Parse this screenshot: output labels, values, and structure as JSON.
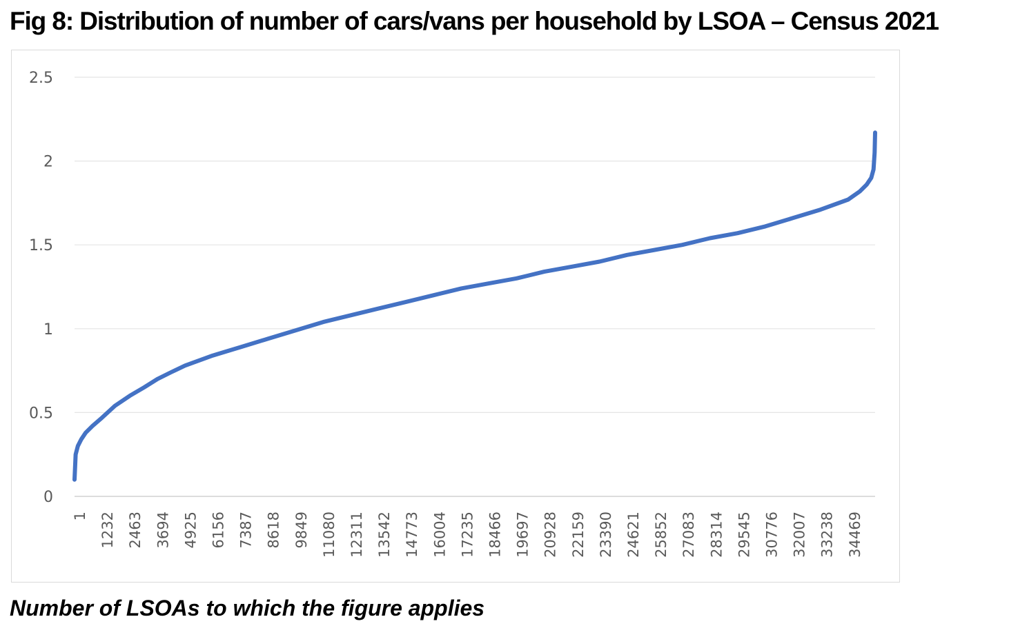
{
  "figure": {
    "title": "Fig 8: Distribution of number of cars/vans per household by LSOA – Census 2021",
    "x_caption": "Number of LSOAs to which the figure applies"
  },
  "chart_data": {
    "type": "line",
    "title": "",
    "xlabel": "",
    "ylabel": "",
    "ylim": [
      0,
      2.5
    ],
    "xlim": [
      1,
      35672
    ],
    "y_ticks": [
      "0",
      "0.5",
      "1",
      "1.5",
      "2",
      "2.5"
    ],
    "x_tick_labels": [
      "1",
      "1232",
      "2463",
      "3694",
      "4925",
      "6156",
      "7387",
      "8618",
      "9849",
      "11080",
      "12311",
      "13542",
      "14773",
      "16004",
      "17235",
      "18466",
      "19697",
      "20928",
      "22159",
      "23390",
      "24621",
      "25852",
      "27083",
      "28314",
      "29545",
      "30776",
      "32007",
      "33238",
      "34469"
    ],
    "grid": true,
    "legend": "none",
    "series_color": "#4472c4",
    "series": [
      {
        "x": [
          1,
          50,
          150,
          300,
          500,
          800,
          1232,
          1800,
          2463,
          3100,
          3694,
          4300,
          4925,
          6156,
          7387,
          8618,
          9849,
          11080,
          12311,
          13542,
          14773,
          16004,
          17235,
          18466,
          19697,
          20928,
          22159,
          23390,
          24621,
          25852,
          27083,
          28314,
          29545,
          30776,
          32007,
          33238,
          34469,
          35000,
          35300,
          35500,
          35600,
          35650,
          35672
        ],
        "y": [
          0.1,
          0.25,
          0.3,
          0.34,
          0.38,
          0.42,
          0.47,
          0.54,
          0.6,
          0.65,
          0.7,
          0.74,
          0.78,
          0.84,
          0.89,
          0.94,
          0.99,
          1.04,
          1.08,
          1.12,
          1.16,
          1.2,
          1.24,
          1.27,
          1.3,
          1.34,
          1.37,
          1.4,
          1.44,
          1.47,
          1.5,
          1.54,
          1.57,
          1.61,
          1.66,
          1.71,
          1.77,
          1.82,
          1.86,
          1.9,
          1.95,
          2.05,
          2.17
        ]
      }
    ]
  }
}
